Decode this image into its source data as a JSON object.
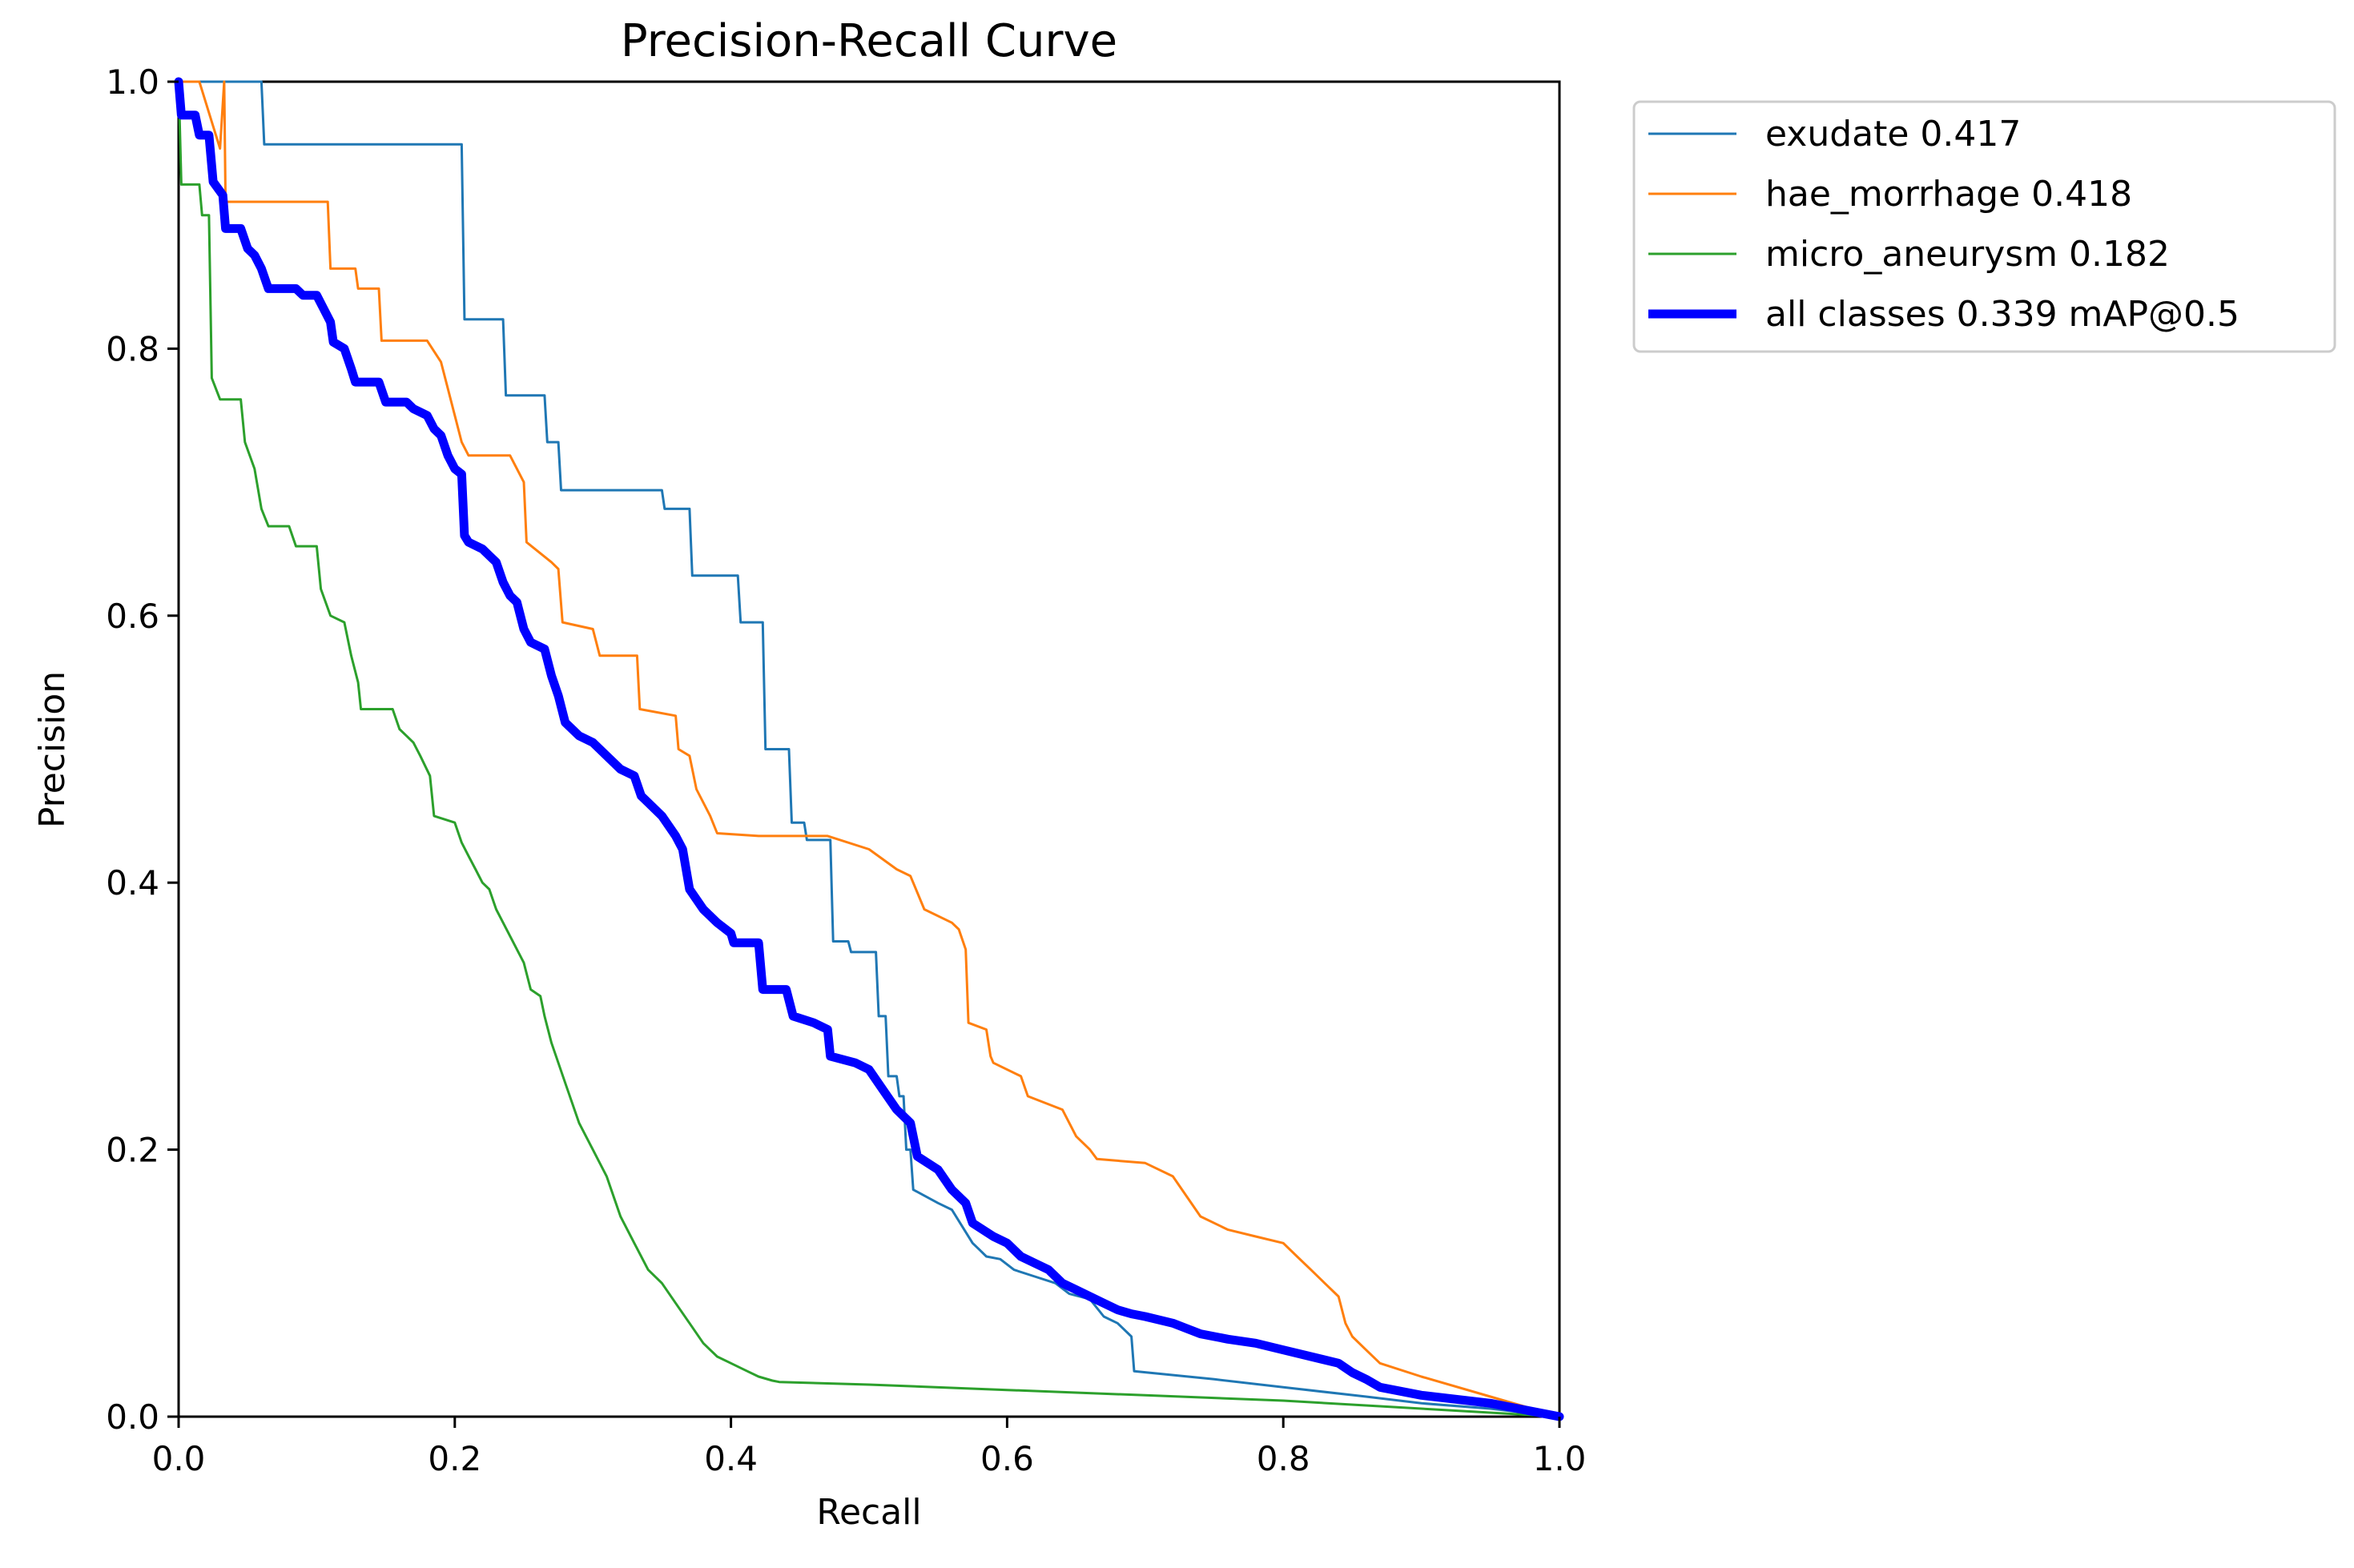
{
  "chart_data": {
    "type": "line",
    "title": "Precision-Recall Curve",
    "xlabel": "Recall",
    "ylabel": "Precision",
    "xlim": [
      0,
      1
    ],
    "ylim": [
      0,
      1
    ],
    "xticks": [
      "0.0",
      "0.2",
      "0.4",
      "0.6",
      "0.8",
      "1.0"
    ],
    "yticks": [
      "0.0",
      "0.2",
      "0.4",
      "0.6",
      "0.8",
      "1.0"
    ],
    "grid": false,
    "legend_position": "outside-top-right",
    "series": [
      {
        "name": "exudate 0.417",
        "color": "#1f77b4",
        "width": "thin",
        "points": [
          [
            0.0,
            1.0
          ],
          [
            0.06,
            1.0
          ],
          [
            0.062,
            0.953
          ],
          [
            0.205,
            0.953
          ],
          [
            0.207,
            0.822
          ],
          [
            0.235,
            0.822
          ],
          [
            0.237,
            0.765
          ],
          [
            0.265,
            0.765
          ],
          [
            0.267,
            0.73
          ],
          [
            0.275,
            0.73
          ],
          [
            0.277,
            0.694
          ],
          [
            0.35,
            0.694
          ],
          [
            0.352,
            0.68
          ],
          [
            0.37,
            0.68
          ],
          [
            0.372,
            0.63
          ],
          [
            0.405,
            0.63
          ],
          [
            0.407,
            0.595
          ],
          [
            0.423,
            0.595
          ],
          [
            0.425,
            0.5
          ],
          [
            0.442,
            0.5
          ],
          [
            0.444,
            0.445
          ],
          [
            0.453,
            0.445
          ],
          [
            0.455,
            0.432
          ],
          [
            0.472,
            0.432
          ],
          [
            0.474,
            0.356
          ],
          [
            0.485,
            0.356
          ],
          [
            0.487,
            0.348
          ],
          [
            0.505,
            0.348
          ],
          [
            0.507,
            0.3
          ],
          [
            0.512,
            0.3
          ],
          [
            0.514,
            0.255
          ],
          [
            0.52,
            0.255
          ],
          [
            0.522,
            0.24
          ],
          [
            0.525,
            0.24
          ],
          [
            0.527,
            0.2
          ],
          [
            0.53,
            0.2
          ],
          [
            0.532,
            0.17
          ],
          [
            0.55,
            0.16
          ],
          [
            0.56,
            0.155
          ],
          [
            0.575,
            0.13
          ],
          [
            0.58,
            0.125
          ],
          [
            0.585,
            0.12
          ],
          [
            0.595,
            0.118
          ],
          [
            0.605,
            0.11
          ],
          [
            0.62,
            0.105
          ],
          [
            0.635,
            0.1
          ],
          [
            0.645,
            0.092
          ],
          [
            0.66,
            0.088
          ],
          [
            0.67,
            0.075
          ],
          [
            0.68,
            0.07
          ],
          [
            0.69,
            0.06
          ],
          [
            0.692,
            0.034
          ],
          [
            0.75,
            0.028
          ],
          [
            0.8,
            0.022
          ],
          [
            0.86,
            0.015
          ],
          [
            0.9,
            0.01
          ],
          [
            0.95,
            0.006
          ],
          [
            1.0,
            0.0
          ]
        ]
      },
      {
        "name": "hae_morrhage 0.418",
        "color": "#ff7f0e",
        "width": "thin",
        "points": [
          [
            0.0,
            1.0
          ],
          [
            0.015,
            1.0
          ],
          [
            0.03,
            0.95
          ],
          [
            0.033,
            1.0
          ],
          [
            0.034,
            0.91
          ],
          [
            0.108,
            0.91
          ],
          [
            0.11,
            0.86
          ],
          [
            0.128,
            0.86
          ],
          [
            0.13,
            0.845
          ],
          [
            0.145,
            0.845
          ],
          [
            0.147,
            0.806
          ],
          [
            0.18,
            0.806
          ],
          [
            0.19,
            0.79
          ],
          [
            0.195,
            0.77
          ],
          [
            0.2,
            0.75
          ],
          [
            0.205,
            0.73
          ],
          [
            0.21,
            0.72
          ],
          [
            0.24,
            0.72
          ],
          [
            0.245,
            0.71
          ],
          [
            0.25,
            0.7
          ],
          [
            0.252,
            0.655
          ],
          [
            0.27,
            0.64
          ],
          [
            0.275,
            0.635
          ],
          [
            0.278,
            0.595
          ],
          [
            0.3,
            0.59
          ],
          [
            0.305,
            0.57
          ],
          [
            0.332,
            0.57
          ],
          [
            0.334,
            0.53
          ],
          [
            0.36,
            0.525
          ],
          [
            0.362,
            0.5
          ],
          [
            0.37,
            0.495
          ],
          [
            0.375,
            0.47
          ],
          [
            0.385,
            0.45
          ],
          [
            0.39,
            0.437
          ],
          [
            0.42,
            0.435
          ],
          [
            0.47,
            0.435
          ],
          [
            0.5,
            0.425
          ],
          [
            0.52,
            0.41
          ],
          [
            0.53,
            0.405
          ],
          [
            0.54,
            0.38
          ],
          [
            0.56,
            0.37
          ],
          [
            0.565,
            0.365
          ],
          [
            0.57,
            0.35
          ],
          [
            0.572,
            0.295
          ],
          [
            0.585,
            0.29
          ],
          [
            0.588,
            0.27
          ],
          [
            0.59,
            0.265
          ],
          [
            0.61,
            0.255
          ],
          [
            0.615,
            0.24
          ],
          [
            0.64,
            0.23
          ],
          [
            0.65,
            0.21
          ],
          [
            0.66,
            0.2
          ],
          [
            0.665,
            0.193
          ],
          [
            0.7,
            0.19
          ],
          [
            0.72,
            0.18
          ],
          [
            0.73,
            0.165
          ],
          [
            0.74,
            0.15
          ],
          [
            0.76,
            0.14
          ],
          [
            0.78,
            0.135
          ],
          [
            0.8,
            0.13
          ],
          [
            0.81,
            0.12
          ],
          [
            0.82,
            0.11
          ],
          [
            0.83,
            0.1
          ],
          [
            0.84,
            0.09
          ],
          [
            0.845,
            0.07
          ],
          [
            0.85,
            0.06
          ],
          [
            0.86,
            0.05
          ],
          [
            0.87,
            0.04
          ],
          [
            0.9,
            0.03
          ],
          [
            0.95,
            0.015
          ],
          [
            1.0,
            0.0
          ]
        ]
      },
      {
        "name": "micro_aneurysm 0.182",
        "color": "#2ca02c",
        "width": "thin",
        "points": [
          [
            0.0,
            1.0
          ],
          [
            0.002,
            0.923
          ],
          [
            0.015,
            0.923
          ],
          [
            0.017,
            0.9
          ],
          [
            0.022,
            0.9
          ],
          [
            0.024,
            0.778
          ],
          [
            0.03,
            0.762
          ],
          [
            0.045,
            0.762
          ],
          [
            0.048,
            0.73
          ],
          [
            0.055,
            0.71
          ],
          [
            0.06,
            0.68
          ],
          [
            0.065,
            0.667
          ],
          [
            0.08,
            0.667
          ],
          [
            0.085,
            0.652
          ],
          [
            0.1,
            0.652
          ],
          [
            0.103,
            0.62
          ],
          [
            0.11,
            0.6
          ],
          [
            0.12,
            0.595
          ],
          [
            0.125,
            0.57
          ],
          [
            0.13,
            0.55
          ],
          [
            0.132,
            0.53
          ],
          [
            0.155,
            0.53
          ],
          [
            0.16,
            0.515
          ],
          [
            0.17,
            0.505
          ],
          [
            0.175,
            0.495
          ],
          [
            0.182,
            0.48
          ],
          [
            0.185,
            0.45
          ],
          [
            0.2,
            0.445
          ],
          [
            0.205,
            0.43
          ],
          [
            0.21,
            0.42
          ],
          [
            0.215,
            0.41
          ],
          [
            0.22,
            0.4
          ],
          [
            0.225,
            0.395
          ],
          [
            0.23,
            0.38
          ],
          [
            0.24,
            0.36
          ],
          [
            0.25,
            0.34
          ],
          [
            0.255,
            0.32
          ],
          [
            0.262,
            0.315
          ],
          [
            0.265,
            0.3
          ],
          [
            0.27,
            0.28
          ],
          [
            0.28,
            0.25
          ],
          [
            0.29,
            0.22
          ],
          [
            0.3,
            0.2
          ],
          [
            0.31,
            0.18
          ],
          [
            0.32,
            0.15
          ],
          [
            0.33,
            0.13
          ],
          [
            0.34,
            0.11
          ],
          [
            0.35,
            0.1
          ],
          [
            0.36,
            0.085
          ],
          [
            0.37,
            0.07
          ],
          [
            0.38,
            0.055
          ],
          [
            0.39,
            0.045
          ],
          [
            0.4,
            0.04
          ],
          [
            0.41,
            0.035
          ],
          [
            0.42,
            0.03
          ],
          [
            0.43,
            0.027
          ],
          [
            0.435,
            0.026
          ],
          [
            0.5,
            0.024
          ],
          [
            0.6,
            0.02
          ],
          [
            0.7,
            0.016
          ],
          [
            0.8,
            0.012
          ],
          [
            0.9,
            0.006
          ],
          [
            1.0,
            0.0
          ]
        ]
      },
      {
        "name": "all classes 0.339 mAP@0.5",
        "color": "#0000ff",
        "width": "thick",
        "points": [
          [
            0.0,
            1.0
          ],
          [
            0.002,
            0.975
          ],
          [
            0.012,
            0.975
          ],
          [
            0.015,
            0.96
          ],
          [
            0.022,
            0.96
          ],
          [
            0.025,
            0.925
          ],
          [
            0.032,
            0.915
          ],
          [
            0.034,
            0.89
          ],
          [
            0.045,
            0.89
          ],
          [
            0.05,
            0.875
          ],
          [
            0.055,
            0.87
          ],
          [
            0.06,
            0.86
          ],
          [
            0.065,
            0.845
          ],
          [
            0.085,
            0.845
          ],
          [
            0.09,
            0.84
          ],
          [
            0.1,
            0.84
          ],
          [
            0.105,
            0.83
          ],
          [
            0.11,
            0.82
          ],
          [
            0.112,
            0.805
          ],
          [
            0.12,
            0.8
          ],
          [
            0.125,
            0.785
          ],
          [
            0.128,
            0.775
          ],
          [
            0.145,
            0.775
          ],
          [
            0.15,
            0.76
          ],
          [
            0.165,
            0.76
          ],
          [
            0.17,
            0.755
          ],
          [
            0.18,
            0.75
          ],
          [
            0.185,
            0.74
          ],
          [
            0.19,
            0.735
          ],
          [
            0.195,
            0.72
          ],
          [
            0.2,
            0.71
          ],
          [
            0.205,
            0.706
          ],
          [
            0.207,
            0.66
          ],
          [
            0.21,
            0.655
          ],
          [
            0.22,
            0.65
          ],
          [
            0.225,
            0.645
          ],
          [
            0.23,
            0.64
          ],
          [
            0.235,
            0.625
          ],
          [
            0.24,
            0.615
          ],
          [
            0.245,
            0.61
          ],
          [
            0.25,
            0.59
          ],
          [
            0.255,
            0.58
          ],
          [
            0.265,
            0.575
          ],
          [
            0.27,
            0.555
          ],
          [
            0.275,
            0.54
          ],
          [
            0.28,
            0.52
          ],
          [
            0.29,
            0.51
          ],
          [
            0.3,
            0.505
          ],
          [
            0.31,
            0.495
          ],
          [
            0.32,
            0.485
          ],
          [
            0.33,
            0.48
          ],
          [
            0.335,
            0.465
          ],
          [
            0.34,
            0.46
          ],
          [
            0.35,
            0.45
          ],
          [
            0.36,
            0.435
          ],
          [
            0.365,
            0.425
          ],
          [
            0.37,
            0.395
          ],
          [
            0.38,
            0.38
          ],
          [
            0.39,
            0.37
          ],
          [
            0.4,
            0.362
          ],
          [
            0.402,
            0.355
          ],
          [
            0.42,
            0.355
          ],
          [
            0.423,
            0.32
          ],
          [
            0.44,
            0.32
          ],
          [
            0.445,
            0.3
          ],
          [
            0.46,
            0.295
          ],
          [
            0.47,
            0.29
          ],
          [
            0.472,
            0.27
          ],
          [
            0.49,
            0.265
          ],
          [
            0.5,
            0.26
          ],
          [
            0.51,
            0.245
          ],
          [
            0.52,
            0.23
          ],
          [
            0.53,
            0.22
          ],
          [
            0.535,
            0.195
          ],
          [
            0.55,
            0.185
          ],
          [
            0.56,
            0.17
          ],
          [
            0.57,
            0.16
          ],
          [
            0.575,
            0.145
          ],
          [
            0.59,
            0.135
          ],
          [
            0.6,
            0.13
          ],
          [
            0.61,
            0.12
          ],
          [
            0.62,
            0.115
          ],
          [
            0.63,
            0.11
          ],
          [
            0.64,
            0.1
          ],
          [
            0.65,
            0.095
          ],
          [
            0.66,
            0.09
          ],
          [
            0.67,
            0.085
          ],
          [
            0.68,
            0.08
          ],
          [
            0.69,
            0.077
          ],
          [
            0.7,
            0.075
          ],
          [
            0.72,
            0.07
          ],
          [
            0.74,
            0.062
          ],
          [
            0.76,
            0.058
          ],
          [
            0.78,
            0.055
          ],
          [
            0.8,
            0.05
          ],
          [
            0.82,
            0.045
          ],
          [
            0.84,
            0.04
          ],
          [
            0.85,
            0.033
          ],
          [
            0.86,
            0.028
          ],
          [
            0.87,
            0.022
          ],
          [
            0.9,
            0.016
          ],
          [
            0.95,
            0.01
          ],
          [
            1.0,
            0.0
          ]
        ]
      }
    ]
  }
}
